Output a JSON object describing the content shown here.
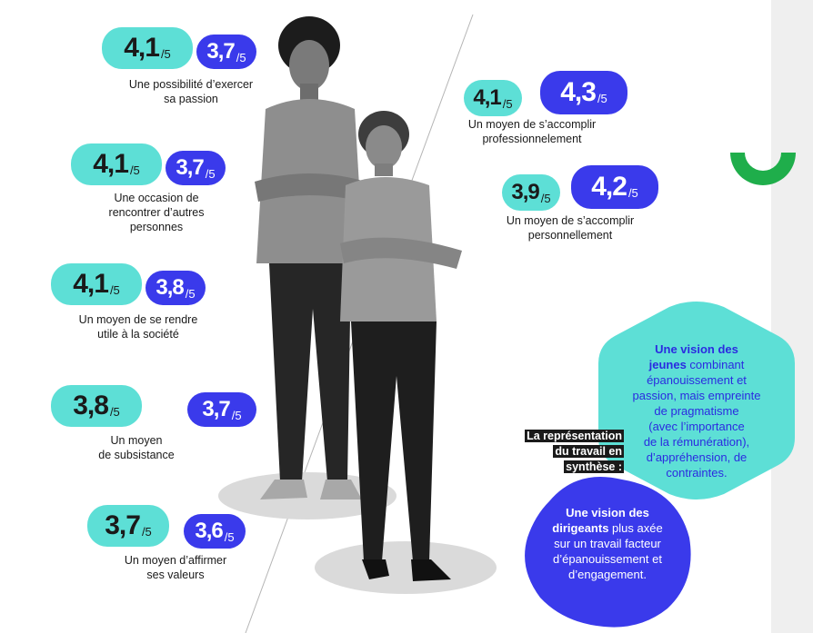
{
  "colors": {
    "teal": "#5ddfd6",
    "blue": "#3a3aeb",
    "green": "#1fae4b",
    "grey_strip": "#efefef"
  },
  "left_ratings": [
    {
      "teal": "4,1",
      "blue": "3,7",
      "denominator": "/5",
      "caption_line1": "Une possibilité d’exercer",
      "caption_line2": "sa passion",
      "caption_line3": ""
    },
    {
      "teal": "4,1",
      "blue": "3,7",
      "denominator": "/5",
      "caption_line1": "Une occasion de",
      "caption_line2": "rencontrer d’autres",
      "caption_line3": "personnes"
    },
    {
      "teal": "4,1",
      "blue": "3,8",
      "denominator": "/5",
      "caption_line1": "Un moyen de se rendre",
      "caption_line2": "utile à la société",
      "caption_line3": ""
    },
    {
      "teal": "3,8",
      "blue": "3,7",
      "denominator": "/5",
      "caption_line1": "Un moyen",
      "caption_line2": "de subsistance",
      "caption_line3": ""
    },
    {
      "teal": "3,7",
      "blue": "3,6",
      "denominator": "/5",
      "caption_line1": "Un moyen d’affirmer",
      "caption_line2": "ses valeurs",
      "caption_line3": ""
    }
  ],
  "right_ratings": [
    {
      "teal": "4,1",
      "blue": "4,3",
      "denominator": "/5",
      "caption_line1": "Un moyen de s’accomplir",
      "caption_line2": "professionnelement"
    },
    {
      "teal": "3,9",
      "blue": "4,2",
      "denominator": "/5",
      "caption_line1": "Un moyen de s’accomplir",
      "caption_line2": "personnellement"
    }
  ],
  "synthesis": {
    "line1": "La représentation",
    "line2": "du travail en",
    "line3": "synthèse :"
  },
  "youth_box": {
    "bold1": "Une vision des",
    "bold2": "jeunes",
    "rest2": " combinant",
    "line3": "épanouissement et",
    "line4": "passion, mais empreinte",
    "line5": "de pragmatisme",
    "line6": "(avec l’importance",
    "line7": "de la rémunération),",
    "line8": "d’appréhension, de",
    "line9": "contraintes."
  },
  "leaders_box": {
    "bold1": "Une vision des",
    "bold2": "dirigeants",
    "rest2": " plus axée",
    "line3": "sur un travail facteur",
    "line4": "d’épanouissement et",
    "line5": "d’engagement."
  },
  "icons": {
    "arc": "green-semicircle-icon",
    "man": "young-man-photo",
    "woman": "senior-woman-photo"
  }
}
